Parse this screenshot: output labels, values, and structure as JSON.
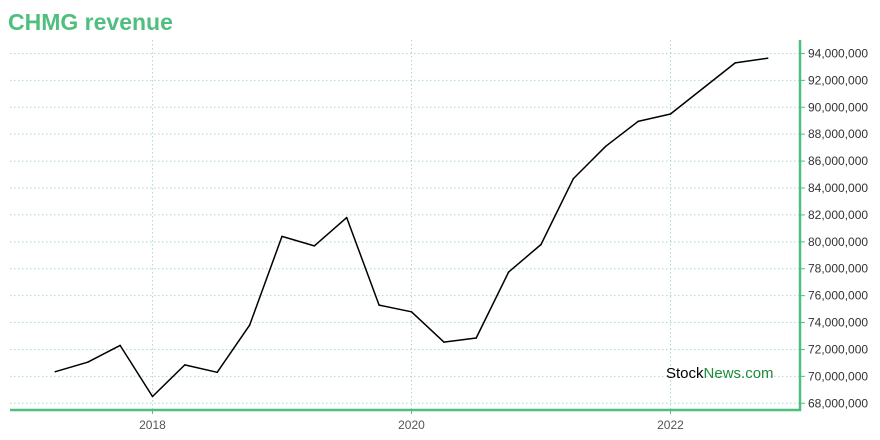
{
  "chart_data": {
    "type": "line",
    "title": "CHMG revenue",
    "xlabel": "",
    "ylabel": "",
    "x_range": [
      2016.9,
      2023.0
    ],
    "ylim": [
      67500000,
      95000000
    ],
    "y_ticks": [
      68000000,
      70000000,
      72000000,
      74000000,
      76000000,
      78000000,
      80000000,
      82000000,
      84000000,
      86000000,
      88000000,
      90000000,
      92000000,
      94000000
    ],
    "y_tick_labels": [
      "68,000,000",
      "70,000,000",
      "72,000,000",
      "74,000,000",
      "76,000,000",
      "78,000,000",
      "80,000,000",
      "82,000,000",
      "84,000,000",
      "86,000,000",
      "88,000,000",
      "90,000,000",
      "92,000,000",
      "94,000,000"
    ],
    "x_ticks": [
      2018,
      2020,
      2022
    ],
    "x_tick_labels": [
      "2018",
      "2020",
      "2022"
    ],
    "grid": true,
    "y_axis_side": "right",
    "series": [
      {
        "color": "#000000",
        "x": [
          2017.25,
          2017.5,
          2017.75,
          2018.0,
          2018.25,
          2018.5,
          2018.75,
          2019.0,
          2019.25,
          2019.5,
          2019.75,
          2020.0,
          2020.25,
          2020.5,
          2020.75,
          2021.0,
          2021.25,
          2021.5,
          2021.75,
          2022.0,
          2022.25,
          2022.5,
          2022.75
        ],
        "values": [
          70350000,
          71050000,
          72300000,
          68500000,
          70850000,
          70300000,
          73800000,
          80400000,
          79700000,
          81800000,
          75300000,
          74800000,
          72550000,
          72850000,
          77750000,
          79800000,
          84700000,
          87100000,
          88950000,
          89500000,
          91400000,
          93300000,
          93650000
        ]
      }
    ]
  },
  "watermark": {
    "part1": "Stock",
    "part2": "News.com"
  },
  "colors": {
    "title": "#4fbf7f",
    "axis": "#4fbf7f",
    "grid": "#a8dcc4",
    "line": "#000000"
  }
}
